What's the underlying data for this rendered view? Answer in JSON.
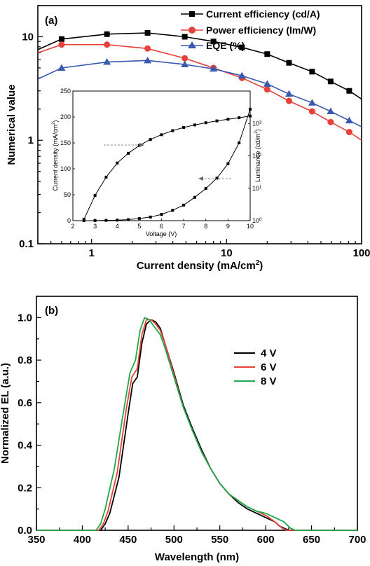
{
  "chart_data": [
    {
      "type": "line",
      "panel_label": "(a)",
      "xlabel_main": "Current density (mA/cm",
      "xlabel_sup": "2",
      "xlabel_end": ")",
      "ylabel": "Numerical value",
      "xscale": "log",
      "yscale": "log",
      "xlim": [
        0.4,
        100
      ],
      "ylim": [
        0.1,
        20
      ],
      "xticks": [
        {
          "v": 1,
          "label": "1"
        },
        {
          "v": 10,
          "label": "10"
        },
        {
          "v": 100,
          "label": "100"
        }
      ],
      "yticks": [
        {
          "v": 0.1,
          "label": "0.1"
        },
        {
          "v": 1,
          "label": "1"
        },
        {
          "v": 10,
          "label": "10"
        }
      ],
      "legend_position": "top-right",
      "series": [
        {
          "name": "Current efficiency (cd/A)",
          "color": "#000000",
          "marker": "square",
          "x": [
            0.4,
            0.6,
            1.3,
            2.6,
            4.9,
            8.0,
            13.0,
            20.0,
            29.0,
            43.0,
            59.0,
            81.0,
            100.0
          ],
          "y": [
            7.5,
            9.5,
            10.6,
            10.9,
            10.0,
            9.0,
            7.9,
            6.8,
            5.6,
            4.6,
            3.7,
            3.0,
            2.5
          ],
          "marked": [
            false,
            true,
            true,
            true,
            true,
            true,
            true,
            true,
            true,
            true,
            true,
            true,
            false
          ]
        },
        {
          "name": "Power efficiency (lm/W)",
          "color": "#e8403a",
          "marker": "circle",
          "x": [
            0.4,
            0.6,
            1.3,
            2.6,
            4.9,
            8.0,
            13.0,
            20.0,
            29.0,
            43.0,
            59.0,
            81.0,
            100.0
          ],
          "y": [
            7.0,
            8.4,
            8.4,
            7.7,
            6.2,
            5.0,
            4.0,
            3.1,
            2.4,
            1.9,
            1.5,
            1.2,
            1.0
          ],
          "marked": [
            false,
            true,
            true,
            true,
            true,
            true,
            true,
            true,
            true,
            true,
            true,
            true,
            false
          ]
        },
        {
          "name": "EQE (%)",
          "color": "#3a59b0",
          "marker": "triangle",
          "x": [
            0.4,
            0.6,
            1.3,
            2.6,
            4.9,
            8.0,
            13.0,
            20.0,
            29.0,
            43.0,
            59.0,
            81.0,
            100.0
          ],
          "y": [
            3.9,
            5.0,
            5.7,
            5.9,
            5.4,
            4.9,
            4.2,
            3.5,
            2.8,
            2.3,
            1.9,
            1.55,
            1.35
          ],
          "marked": [
            false,
            true,
            true,
            true,
            true,
            true,
            true,
            true,
            true,
            true,
            true,
            true,
            false
          ]
        }
      ],
      "inset": {
        "type": "line",
        "xlabel": "Voltage (V)",
        "ylabel_left_main": "Current density (mA/cm",
        "ylabel_left_sup": "2",
        "ylabel_left_end": ")",
        "ylabel_right_main": "Luminance (cd/m",
        "ylabel_right_sup": "2",
        "ylabel_right_end": ")",
        "xlim": [
          2,
          10
        ],
        "ylim_left": [
          0,
          250
        ],
        "ylim_right": [
          1,
          10000
        ],
        "yscale_right": "log",
        "xticks": [
          "2",
          "3",
          "4",
          "5",
          "6",
          "7",
          "8",
          "9",
          "10"
        ],
        "yticks_left": [
          "0",
          "50",
          "100",
          "150",
          "200",
          "250"
        ],
        "yticks_right": [
          {
            "base": "10",
            "exp": "0"
          },
          {
            "base": "10",
            "exp": "1"
          },
          {
            "base": "10",
            "exp": "2"
          },
          {
            "base": "10",
            "exp": "3"
          }
        ],
        "series": [
          {
            "name": "Luminance",
            "axis": "right",
            "x": [
              2.5,
              3.0,
              3.5,
              4.0,
              4.5,
              5.0,
              5.5,
              6.0,
              6.5,
              7.0,
              7.5,
              8.0,
              8.5,
              9.0,
              9.5,
              10.0
            ],
            "y": [
              1.1,
              6.0,
              22,
              60,
              120,
              210,
              320,
              450,
              600,
              750,
              900,
              1050,
              1200,
              1350,
              1500,
              1700
            ]
          },
          {
            "name": "Current density",
            "axis": "left",
            "x": [
              2.5,
              3.0,
              3.5,
              4.0,
              4.5,
              5.0,
              5.5,
              6.0,
              6.5,
              7.0,
              7.5,
              8.0,
              8.5,
              9.0,
              9.5,
              10.0
            ],
            "y": [
              0,
              0.2,
              0.5,
              1,
              2,
              4,
              7,
              12,
              20,
              30,
              45,
              62,
              82,
              110,
              150,
              215
            ]
          }
        ]
      }
    },
    {
      "type": "line",
      "panel_label": "(b)",
      "xlabel": "Wavelength (nm)",
      "ylabel": "Normalized EL (a.u.)",
      "xlim": [
        350,
        700
      ],
      "ylim": [
        0,
        1.1
      ],
      "xticks": [
        "350",
        "400",
        "450",
        "500",
        "550",
        "600",
        "650",
        "700"
      ],
      "yticks": [
        "0.0",
        "0.2",
        "0.4",
        "0.6",
        "0.8",
        "1.0"
      ],
      "legend_position": "top-right",
      "series": [
        {
          "name": "4 V",
          "color": "#000000",
          "x": [
            350,
            420,
            425,
            430,
            440,
            450,
            455,
            460,
            465,
            470,
            475,
            480,
            485,
            490,
            500,
            510,
            520,
            530,
            540,
            550,
            560,
            570,
            580,
            590,
            600,
            610,
            615,
            620,
            625,
            700
          ],
          "y": [
            0,
            0,
            0.03,
            0.08,
            0.25,
            0.55,
            0.69,
            0.72,
            0.88,
            0.97,
            0.99,
            0.98,
            0.95,
            0.88,
            0.74,
            0.59,
            0.48,
            0.38,
            0.29,
            0.22,
            0.17,
            0.13,
            0.1,
            0.08,
            0.06,
            0.04,
            0.02,
            0.01,
            0,
            0
          ]
        },
        {
          "name": "6 V",
          "color": "#e8403a",
          "x": [
            350,
            418,
            423,
            428,
            438,
            448,
            454,
            460,
            465,
            470,
            475,
            480,
            485,
            490,
            500,
            510,
            520,
            530,
            540,
            550,
            560,
            570,
            580,
            590,
            600,
            610,
            618,
            623,
            700
          ],
          "y": [
            0,
            0,
            0.03,
            0.09,
            0.27,
            0.57,
            0.72,
            0.76,
            0.92,
            0.99,
            0.99,
            0.97,
            0.94,
            0.88,
            0.73,
            0.58,
            0.47,
            0.37,
            0.29,
            0.22,
            0.17,
            0.14,
            0.11,
            0.09,
            0.07,
            0.04,
            0.01,
            0,
            0
          ]
        },
        {
          "name": "8 V",
          "color": "#1fa84a",
          "x": [
            350,
            415,
            420,
            425,
            435,
            445,
            452,
            458,
            463,
            468,
            473,
            478,
            485,
            490,
            500,
            510,
            520,
            530,
            540,
            550,
            560,
            570,
            580,
            590,
            600,
            610,
            620,
            627,
            632,
            700
          ],
          "y": [
            0,
            0,
            0.03,
            0.1,
            0.29,
            0.56,
            0.74,
            0.8,
            0.94,
            1.0,
            0.99,
            0.96,
            0.92,
            0.86,
            0.72,
            0.58,
            0.47,
            0.37,
            0.29,
            0.22,
            0.17,
            0.14,
            0.11,
            0.09,
            0.08,
            0.06,
            0.04,
            0.01,
            0,
            0
          ]
        }
      ]
    }
  ]
}
